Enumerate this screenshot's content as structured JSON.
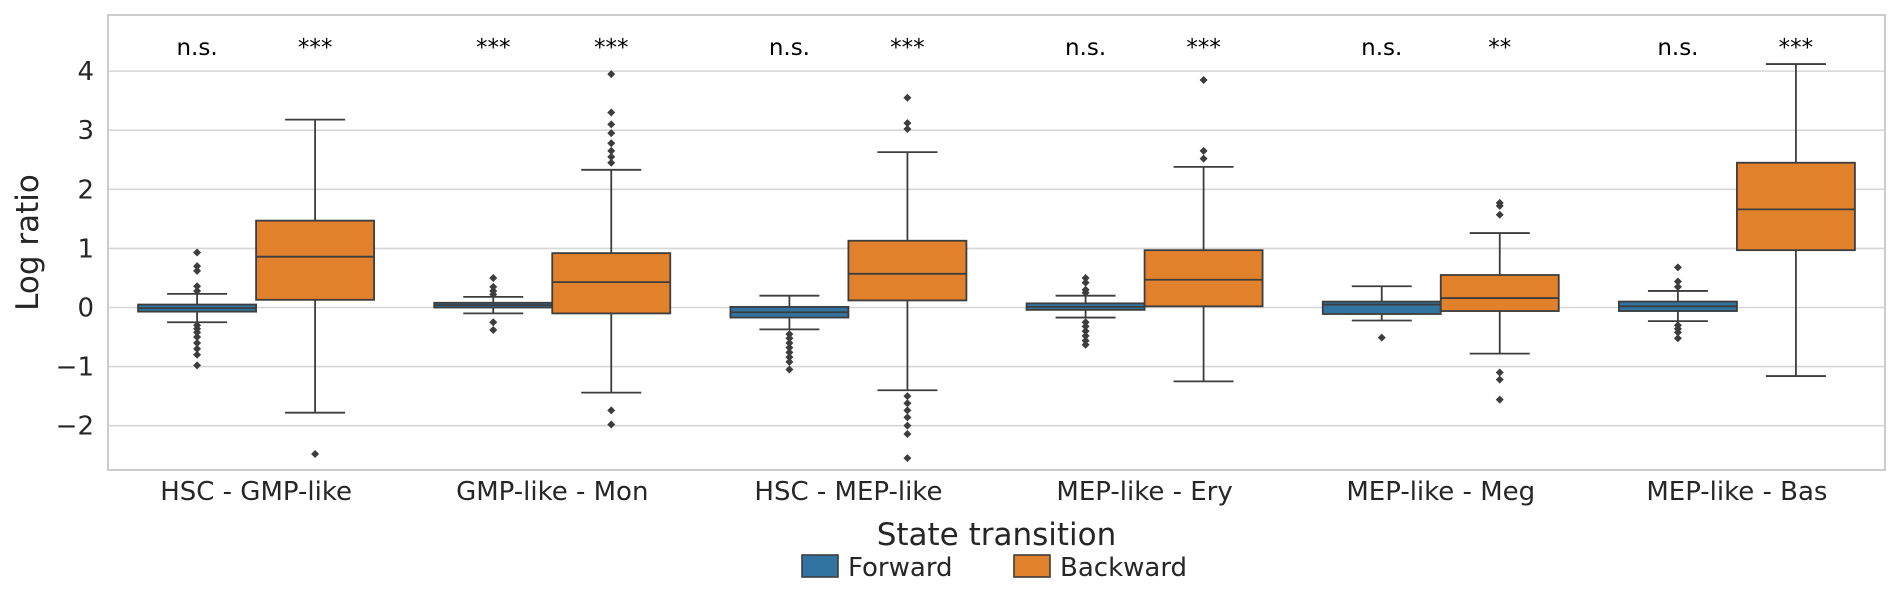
{
  "chart_data": {
    "type": "box",
    "xlabel": "State transition",
    "ylabel": "Log ratio",
    "ylim": [
      -2.75,
      4.95
    ],
    "yticks": [
      -2,
      -1,
      0,
      1,
      2,
      3,
      4
    ],
    "ytick_labels": [
      "−2",
      "−1",
      "0",
      "1",
      "2",
      "3",
      "4"
    ],
    "grid": "horizontal",
    "legend_position": "bottom-center",
    "categories": [
      "HSC - GMP-like",
      "GMP-like - Mon",
      "HSC - MEP-like",
      "MEP-like - Ery",
      "MEP-like - Meg",
      "MEP-like - Bas"
    ],
    "series": [
      {
        "name": "Forward",
        "color": "#3274a1",
        "boxes": [
          {
            "whislo": -0.25,
            "q1": -0.07,
            "med": -0.01,
            "q3": 0.05,
            "whishi": 0.23,
            "fliers": [
              0.93,
              0.7,
              0.62,
              0.36,
              0.28,
              -0.3,
              -0.36,
              -0.42,
              -0.5,
              -0.6,
              -0.7,
              -0.8,
              -0.98
            ]
          },
          {
            "whislo": -0.1,
            "q1": 0.0,
            "med": 0.04,
            "q3": 0.08,
            "whishi": 0.18,
            "fliers": [
              0.5,
              0.35,
              0.28,
              0.22,
              -0.25,
              -0.38
            ]
          },
          {
            "whislo": -0.37,
            "q1": -0.17,
            "med": -0.08,
            "q3": 0.01,
            "whishi": 0.2,
            "fliers": [
              -0.45,
              -0.52,
              -0.6,
              -0.68,
              -0.76,
              -0.84,
              -0.92,
              -1.05
            ]
          },
          {
            "whislo": -0.17,
            "q1": -0.04,
            "med": 0.01,
            "q3": 0.07,
            "whishi": 0.2,
            "fliers": [
              0.5,
              0.42,
              0.3,
              0.25,
              -0.25,
              -0.32,
              -0.4,
              -0.48,
              -0.56,
              -0.63
            ]
          },
          {
            "whislo": -0.22,
            "q1": -0.11,
            "med": 0.05,
            "q3": 0.1,
            "whishi": 0.36,
            "fliers": [
              -0.51
            ]
          },
          {
            "whislo": -0.23,
            "q1": -0.06,
            "med": 0.02,
            "q3": 0.1,
            "whishi": 0.28,
            "fliers": [
              0.68,
              0.44,
              0.35,
              -0.3,
              -0.36,
              -0.42,
              -0.52
            ]
          }
        ]
      },
      {
        "name": "Backward",
        "color": "#e1812c",
        "boxes": [
          {
            "whislo": -1.78,
            "q1": 0.13,
            "med": 0.86,
            "q3": 1.47,
            "whishi": 3.18,
            "fliers": [
              -2.48
            ]
          },
          {
            "whislo": -1.44,
            "q1": -0.1,
            "med": 0.43,
            "q3": 0.92,
            "whishi": 2.33,
            "fliers": [
              3.95,
              3.3,
              3.1,
              2.95,
              2.78,
              2.65,
              2.55,
              2.45,
              -1.74,
              -1.98
            ]
          },
          {
            "whislo": -1.4,
            "q1": 0.12,
            "med": 0.57,
            "q3": 1.13,
            "whishi": 2.63,
            "fliers": [
              3.55,
              3.12,
              3.02,
              -1.5,
              -1.62,
              -1.74,
              -1.86,
              -2.0,
              -2.14,
              -2.55
            ]
          },
          {
            "whislo": -1.25,
            "q1": 0.02,
            "med": 0.47,
            "q3": 0.97,
            "whishi": 2.38,
            "fliers": [
              3.85,
              2.65,
              2.52
            ]
          },
          {
            "whislo": -0.78,
            "q1": -0.06,
            "med": 0.16,
            "q3": 0.55,
            "whishi": 1.26,
            "fliers": [
              1.77,
              1.72,
              1.57,
              -1.1,
              -1.22,
              -1.56
            ]
          },
          {
            "whislo": -1.16,
            "q1": 0.97,
            "med": 1.66,
            "q3": 2.45,
            "whishi": 4.12,
            "fliers": []
          }
        ]
      }
    ],
    "annotations": [
      {
        "category": 0,
        "series": 0,
        "text": "n.s."
      },
      {
        "category": 0,
        "series": 1,
        "text": "***"
      },
      {
        "category": 1,
        "series": 0,
        "text": "***"
      },
      {
        "category": 1,
        "series": 1,
        "text": "***"
      },
      {
        "category": 2,
        "series": 0,
        "text": "n.s."
      },
      {
        "category": 2,
        "series": 1,
        "text": "***"
      },
      {
        "category": 3,
        "series": 0,
        "text": "n.s."
      },
      {
        "category": 3,
        "series": 1,
        "text": "***"
      },
      {
        "category": 4,
        "series": 0,
        "text": "n.s."
      },
      {
        "category": 4,
        "series": 1,
        "text": "**"
      },
      {
        "category": 5,
        "series": 0,
        "text": "n.s."
      },
      {
        "category": 5,
        "series": 1,
        "text": "***"
      }
    ]
  }
}
